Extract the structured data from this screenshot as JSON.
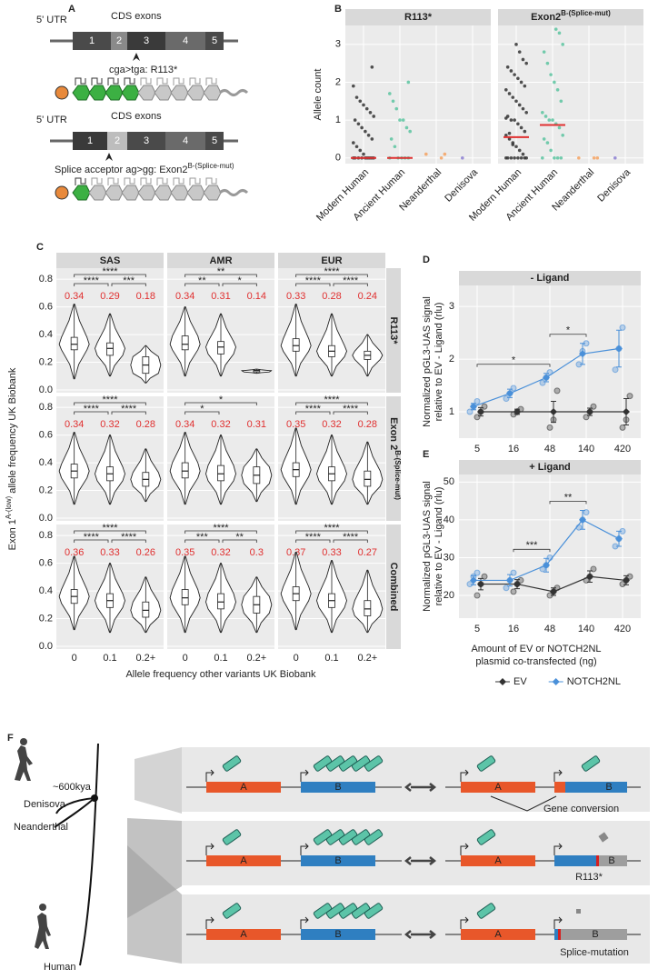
{
  "panel_labels": [
    "A",
    "B",
    "C",
    "D",
    "E",
    "F"
  ],
  "diagram_a": {
    "top": {
      "utr": "5' UTR",
      "cds": "CDS exons",
      "exons": [
        "1",
        "2",
        "3",
        "4",
        "5"
      ],
      "mutation": "cga>tga: R113*"
    },
    "bottom": {
      "utr": "5' UTR",
      "cds": "CDS exons",
      "exons": [
        "1",
        "2",
        "3",
        "4",
        "5"
      ],
      "mutation": "Splice acceptor ag>gg: Exon2",
      "mutation_sup": "B-(Splice-mut)"
    }
  },
  "chart_data": [
    {
      "type": "strip",
      "y_label": "Allele count",
      "categories": [
        "Modern Human",
        "Ancient Human",
        "Neanderthal",
        "Denisova"
      ],
      "colors": [
        "#333333",
        "#5cc4a0",
        "#f4a261",
        "#8c7fd1"
      ],
      "ylim": [
        -0.15,
        3.5
      ],
      "yticks": [
        0,
        1,
        2,
        3
      ],
      "grid": true,
      "facets": [
        {
          "title": "R113*",
          "means": [
            0,
            0,
            null,
            null
          ],
          "points": [
            [
              0,
              0,
              0,
              0,
              0,
              0,
              0,
              0,
              0,
              0,
              0.1,
              0.2,
              0.3,
              0.4,
              0.5,
              0.6,
              0.7,
              0.8,
              0.9,
              1,
              1.1,
              1.2,
              1.3,
              1.4,
              1.5,
              1.6,
              1.9,
              2.4
            ],
            [
              0,
              0,
              0,
              0,
              0,
              0.3,
              0.5,
              0.7,
              0.8,
              1,
              1,
              1.3,
              1.5,
              1.7,
              2
            ],
            [
              0.1,
              0.1,
              0
            ],
            [
              0
            ]
          ]
        },
        {
          "title": "Exon2",
          "title_sup": "B-(Splice-mut)",
          "means": [
            0.55,
            0.87,
            null,
            null
          ],
          "points": [
            [
              0,
              0,
              0,
              0,
              0,
              0,
              0,
              0,
              0.1,
              0.2,
              0.3,
              0.4,
              0.5,
              0.6,
              0.7,
              0.8,
              0.9,
              1,
              1,
              1.1,
              1.2,
              1.3,
              1.4,
              1.5,
              1.6,
              1.7,
              1.8,
              1.9,
              2,
              2.1,
              2.2,
              2.3,
              2.4,
              2.5,
              2.6,
              2.8,
              3,
              0.35,
              0.65,
              1.05
            ],
            [
              0,
              0,
              0,
              0,
              0.2,
              0.4,
              0.5,
              0.6,
              0.8,
              0.9,
              1,
              1,
              1.1,
              1.2,
              1.5,
              1.8,
              2,
              2.2,
              2.5,
              2.8,
              3,
              3.3,
              3.4
            ],
            [
              0,
              0,
              0
            ],
            [
              0
            ]
          ]
        }
      ]
    },
    {
      "type": "violin",
      "y_label": "Exon 1",
      "y_label_sup": "A-(low)",
      "y_label_rest": "allele frequency UK Biobank",
      "x_label": "Allele frequency other variants UK Biobank",
      "categories": [
        "0",
        "0.1",
        "0.2+"
      ],
      "columns": [
        "SAS",
        "AMR",
        "EUR"
      ],
      "rows": [
        {
          "label": "R113*"
        },
        {
          "label": "Exon 2",
          "sup": "B-(Splice-mut)"
        },
        {
          "label": "Combined"
        }
      ],
      "ylim": [
        -0.02,
        0.88
      ],
      "yticks": [
        {
          "value": 0,
          "label": "0.0"
        },
        0.2,
        0.4,
        0.6,
        0.8
      ],
      "grid": true,
      "facets": [
        {
          "means": [
            0.34,
            0.29,
            0.18
          ],
          "significance": [
            "****",
            "****",
            "***"
          ],
          "mins": [
            0.08,
            0.1,
            0.05
          ],
          "q1": [
            0.29,
            0.25,
            0.12
          ],
          "medians": [
            0.33,
            0.3,
            0.18
          ],
          "q3": [
            0.38,
            0.34,
            0.24
          ],
          "maxs": [
            0.62,
            0.55,
            0.32
          ]
        },
        {
          "means": [
            0.34,
            0.31,
            0.14
          ],
          "significance": [
            "**",
            "**",
            "*"
          ],
          "mins": [
            0.1,
            0.1,
            0.12
          ],
          "q1": [
            0.29,
            0.26,
            0.13
          ],
          "medians": [
            0.33,
            0.31,
            0.14
          ],
          "q3": [
            0.39,
            0.35,
            0.14
          ],
          "maxs": [
            0.6,
            0.55,
            0.15
          ]
        },
        {
          "means": [
            0.33,
            0.28,
            0.24
          ],
          "significance": [
            "****",
            "****",
            "****"
          ],
          "mins": [
            0.1,
            0.1,
            0.1
          ],
          "q1": [
            0.28,
            0.24,
            0.22
          ],
          "medians": [
            0.32,
            0.28,
            0.25
          ],
          "q3": [
            0.37,
            0.32,
            0.28
          ],
          "maxs": [
            0.62,
            0.55,
            0.4
          ]
        },
        {
          "means": [
            0.34,
            0.32,
            0.28
          ],
          "significance": [
            "****",
            "****",
            "****"
          ],
          "mins": [
            0.1,
            0.1,
            0.12
          ],
          "q1": [
            0.29,
            0.27,
            0.23
          ],
          "medians": [
            0.34,
            0.32,
            0.28
          ],
          "q3": [
            0.39,
            0.37,
            0.33
          ],
          "maxs": [
            0.62,
            0.6,
            0.5
          ]
        },
        {
          "means": [
            0.34,
            0.32,
            0.31
          ],
          "significance": [
            "*",
            "*",
            null
          ],
          "mins": [
            0.1,
            0.1,
            0.12
          ],
          "q1": [
            0.29,
            0.27,
            0.25
          ],
          "medians": [
            0.34,
            0.32,
            0.31
          ],
          "q3": [
            0.4,
            0.38,
            0.37
          ],
          "maxs": [
            0.62,
            0.6,
            0.5
          ]
        },
        {
          "means": [
            0.35,
            0.32,
            0.28
          ],
          "significance": [
            "****",
            "****",
            "****"
          ],
          "mins": [
            0.1,
            0.1,
            0.1
          ],
          "q1": [
            0.3,
            0.27,
            0.23
          ],
          "medians": [
            0.35,
            0.32,
            0.28
          ],
          "q3": [
            0.4,
            0.37,
            0.34
          ],
          "maxs": [
            0.65,
            0.6,
            0.55
          ]
        },
        {
          "means": [
            0.36,
            0.33,
            0.26
          ],
          "significance": [
            "****",
            "****",
            "****"
          ],
          "mins": [
            0.12,
            0.1,
            0.1
          ],
          "q1": [
            0.31,
            0.28,
            0.21
          ],
          "medians": [
            0.36,
            0.33,
            0.26
          ],
          "q3": [
            0.41,
            0.38,
            0.32
          ],
          "maxs": [
            0.65,
            0.6,
            0.5
          ]
        },
        {
          "means": [
            0.35,
            0.32,
            0.3
          ],
          "significance": [
            "****",
            "***",
            "**"
          ],
          "mins": [
            0.1,
            0.1,
            0.1
          ],
          "q1": [
            0.3,
            0.27,
            0.24
          ],
          "medians": [
            0.35,
            0.32,
            0.3
          ],
          "q3": [
            0.41,
            0.38,
            0.36
          ],
          "maxs": [
            0.65,
            0.6,
            0.5
          ]
        },
        {
          "means": [
            0.37,
            0.33,
            0.27
          ],
          "significance": [
            "****",
            "****",
            "****"
          ],
          "mins": [
            0.12,
            0.1,
            0.1
          ],
          "q1": [
            0.33,
            0.28,
            0.22
          ],
          "medians": [
            0.38,
            0.33,
            0.27
          ],
          "q3": [
            0.43,
            0.38,
            0.33
          ],
          "maxs": [
            0.68,
            0.62,
            0.55
          ]
        }
      ]
    },
    {
      "type": "line",
      "title": "- Ligand",
      "y_label": [
        "Normalized pGL3-UAS signal",
        "relative to EV - Ligand (rlu)"
      ],
      "categories": [
        "5",
        "16",
        "48",
        "140",
        "420"
      ],
      "ylim": [
        0.5,
        3.4
      ],
      "yticks": [
        1,
        2,
        3
      ],
      "grid": true,
      "series": [
        {
          "name": "EV",
          "color": "#333333",
          "values": [
            1.0,
            1.0,
            1.0,
            1.0,
            1.0
          ],
          "errors": [
            0.08,
            0.05,
            0.2,
            0.07,
            0.25
          ],
          "replicates": [
            [
              0.9,
              1.0,
              1.1
            ],
            [
              0.95,
              1.0,
              1.05
            ],
            [
              0.7,
              0.85,
              1.4
            ],
            [
              0.9,
              1.0,
              1.1
            ],
            [
              0.7,
              0.85,
              1.3
            ]
          ]
        },
        {
          "name": "NOTCH2NL",
          "color": "#4a90d9",
          "values": [
            1.1,
            1.35,
            1.65,
            2.1,
            2.2
          ],
          "errors": [
            0.06,
            0.08,
            0.08,
            0.2,
            0.35
          ],
          "replicates": [
            [
              1.0,
              1.1,
              1.2
            ],
            [
              1.25,
              1.35,
              1.45
            ],
            [
              1.55,
              1.65,
              1.75
            ],
            [
              1.9,
              2.15,
              2.3
            ],
            [
              1.8,
              2.2,
              2.6
            ]
          ]
        }
      ],
      "brackets": [
        {
          "from": "5",
          "to": "48",
          "label": "*"
        },
        {
          "from": "48",
          "to": "140",
          "label": "*"
        }
      ]
    },
    {
      "type": "line",
      "title": "+ Ligand",
      "y_label": [
        "Normalized pGL3-UAS signal",
        "relative to EV - Ligand (rlu)"
      ],
      "x_label": [
        "Amount of EV or NOTCH2NL",
        "plasmid co-transfected (ng)"
      ],
      "categories": [
        "5",
        "16",
        "48",
        "140",
        "420"
      ],
      "ylim": [
        14,
        52
      ],
      "yticks": [
        20,
        30,
        40,
        50
      ],
      "grid": true,
      "legend": "bottom",
      "series": [
        {
          "name": "EV",
          "color": "#333333",
          "values": [
            23,
            23,
            21,
            25,
            24
          ],
          "errors": [
            1.5,
            1.2,
            1.0,
            1.5,
            1.2
          ],
          "replicates": [
            [
              20,
              23,
              25
            ],
            [
              21,
              23,
              24
            ],
            [
              20,
              21,
              22
            ],
            [
              24,
              25,
              27
            ],
            [
              23,
              24,
              25
            ]
          ]
        },
        {
          "name": "NOTCH2NL",
          "color": "#4a90d9",
          "values": [
            24,
            24,
            28,
            40,
            35
          ],
          "errors": [
            1.2,
            1.5,
            1.8,
            2.5,
            2.0
          ],
          "replicates": [
            [
              23,
              25,
              26
            ],
            [
              22,
              24,
              26
            ],
            [
              27,
              28,
              30
            ],
            [
              38,
              40,
              42
            ],
            [
              33,
              35,
              37
            ]
          ]
        }
      ],
      "brackets": [
        {
          "from": "16",
          "to": "48",
          "label": "***"
        },
        {
          "from": "48",
          "to": "140",
          "label": "**"
        }
      ]
    }
  ],
  "diagram_f": {
    "divergence": "~600kya",
    "species": [
      "Denisova",
      "Neanderthal",
      "Human"
    ],
    "rows": [
      {
        "labels": [
          "A",
          "B",
          "A",
          "B"
        ],
        "event": "Gene conversion"
      },
      {
        "labels": [
          "A",
          "B",
          "A",
          "B"
        ],
        "event": "R113*"
      },
      {
        "labels": [
          "A",
          "B",
          "A",
          "B"
        ],
        "event": "Splice-mutation"
      }
    ]
  }
}
